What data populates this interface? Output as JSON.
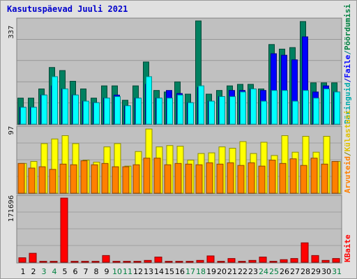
{
  "title": "Kasutuspäevad Juuli 2021",
  "colors": {
    "hits": "#00FFFF",
    "files": "#0000FF",
    "pages": "#008080",
    "visits": "#FFFF00",
    "sites": "#FF8000",
    "kbytes": "#FF0000",
    "weekday_label": "#000000",
    "weekend_label": "#008040",
    "panel_bg": "#C0C0C0"
  },
  "legend": {
    "top": {
      "files": "Faile",
      "separator": "/",
      "pages": "Pöördumisi",
      "hits": "Päringuid"
    },
    "middle": {
      "sites": "Arvuteid",
      "separator": "/",
      "visits": "Külastusi"
    },
    "bottom": {
      "kbytes": "KBaite"
    }
  },
  "chart_data": [
    {
      "type": "bar",
      "panel": "top",
      "y_max_label": "337",
      "ylim": [
        0,
        337
      ],
      "categories": [
        "1",
        "2",
        "3",
        "4",
        "5",
        "6",
        "7",
        "8",
        "9",
        "10",
        "11",
        "12",
        "13",
        "14",
        "15",
        "16",
        "17",
        "18",
        "19",
        "20",
        "21",
        "22",
        "23",
        "24",
        "25",
        "26",
        "27",
        "28",
        "29",
        "30",
        "31"
      ],
      "weekend_days": [
        "3",
        "4",
        "10",
        "11",
        "17",
        "18",
        "24",
        "25",
        "31"
      ],
      "series": [
        {
          "name": "Pöördumisi",
          "key": "pages",
          "values": [
            85,
            85,
            115,
            185,
            175,
            140,
            115,
            85,
            125,
            125,
            78,
            125,
            203,
            110,
            105,
            138,
            98,
            337,
            98,
            110,
            125,
            130,
            130,
            115,
            260,
            245,
            250,
            335,
            135,
            135,
            135
          ]
        },
        {
          "name": "Faile",
          "key": "files",
          "values": [
            55,
            55,
            95,
            125,
            115,
            95,
            75,
            70,
            85,
            95,
            60,
            85,
            130,
            85,
            110,
            100,
            70,
            120,
            75,
            90,
            110,
            110,
            115,
            110,
            230,
            225,
            210,
            285,
            105,
            125,
            105
          ]
        },
        {
          "name": "Päringuid",
          "key": "hits",
          "values": [
            55,
            55,
            95,
            155,
            115,
            95,
            75,
            70,
            85,
            90,
            60,
            85,
            155,
            85,
            85,
            95,
            70,
            125,
            75,
            90,
            90,
            105,
            115,
            75,
            110,
            110,
            75,
            110,
            85,
            115,
            105
          ]
        }
      ]
    },
    {
      "type": "bar",
      "panel": "middle",
      "y_max_label": "97",
      "ylim": [
        0,
        97
      ],
      "categories": [
        "1",
        "2",
        "3",
        "4",
        "5",
        "6",
        "7",
        "8",
        "9",
        "10",
        "11",
        "12",
        "13",
        "14",
        "15",
        "16",
        "17",
        "18",
        "19",
        "20",
        "21",
        "22",
        "23",
        "24",
        "25",
        "26",
        "27",
        "28",
        "29",
        "30",
        "31"
      ],
      "series": [
        {
          "name": "Külastusi",
          "key": "visits",
          "values": [
            45,
            48,
            75,
            82,
            87,
            75,
            50,
            47,
            70,
            75,
            41,
            63,
            97,
            70,
            72,
            71,
            50,
            60,
            61,
            70,
            68,
            78,
            60,
            77,
            57,
            87,
            62,
            86,
            62,
            86,
            48
          ]
        },
        {
          "name": "Arvuteid",
          "key": "sites",
          "values": [
            45,
            38,
            40,
            36,
            44,
            43,
            49,
            43,
            45,
            40,
            40,
            43,
            53,
            53,
            43,
            45,
            44,
            43,
            46,
            44,
            46,
            42,
            46,
            41,
            50,
            45,
            52,
            42,
            53,
            44,
            48
          ]
        }
      ]
    },
    {
      "type": "bar",
      "panel": "bottom",
      "y_max_label": "171696",
      "ylim": [
        0,
        171696
      ],
      "categories": [
        "1",
        "2",
        "3",
        "4",
        "5",
        "6",
        "7",
        "8",
        "9",
        "10",
        "11",
        "12",
        "13",
        "14",
        "15",
        "16",
        "17",
        "18",
        "19",
        "20",
        "21",
        "22",
        "23",
        "24",
        "25",
        "26",
        "27",
        "28",
        "29",
        "30",
        "31"
      ],
      "series": [
        {
          "name": "KBaite",
          "key": "kbytes",
          "values": [
            12000,
            24000,
            2500,
            2500,
            171696,
            2500,
            2500,
            2500,
            18000,
            2500,
            2500,
            2500,
            5000,
            14000,
            2500,
            2500,
            2500,
            5000,
            17000,
            2500,
            10000,
            2500,
            5000,
            14000,
            2500,
            7000,
            10000,
            52000,
            18000,
            5000,
            10000
          ]
        }
      ]
    }
  ]
}
